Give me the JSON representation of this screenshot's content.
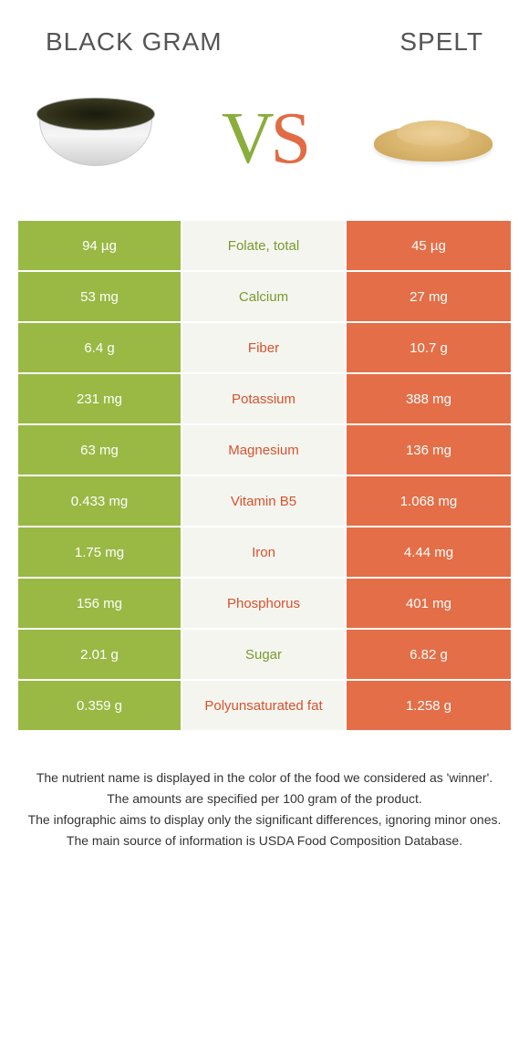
{
  "header": {
    "left_title": "Black gram",
    "right_title": "Spelt"
  },
  "vs": {
    "v": "V",
    "s": "S"
  },
  "colors": {
    "green": "#99b944",
    "orange": "#e46e47",
    "mid_bg": "#f5f5f0",
    "txt_green": "#7a9a2e",
    "txt_orange": "#d8522c"
  },
  "rows": [
    {
      "left": "94 µg",
      "label": "Folate, total",
      "right": "45 µg",
      "winner": "left"
    },
    {
      "left": "53 mg",
      "label": "Calcium",
      "right": "27 mg",
      "winner": "left"
    },
    {
      "left": "6.4 g",
      "label": "Fiber",
      "right": "10.7 g",
      "winner": "right"
    },
    {
      "left": "231 mg",
      "label": "Potassium",
      "right": "388 mg",
      "winner": "right"
    },
    {
      "left": "63 mg",
      "label": "Magnesium",
      "right": "136 mg",
      "winner": "right"
    },
    {
      "left": "0.433 mg",
      "label": "Vitamin B5",
      "right": "1.068 mg",
      "winner": "right"
    },
    {
      "left": "1.75 mg",
      "label": "Iron",
      "right": "4.44 mg",
      "winner": "right"
    },
    {
      "left": "156 mg",
      "label": "Phosphorus",
      "right": "401 mg",
      "winner": "right"
    },
    {
      "left": "2.01 g",
      "label": "Sugar",
      "right": "6.82 g",
      "winner": "left"
    },
    {
      "left": "0.359 g",
      "label": "Polyunsaturated fat",
      "right": "1.258 g",
      "winner": "right"
    }
  ],
  "footer": {
    "line1": "The nutrient name is displayed in the color of the food we considered as 'winner'.",
    "line2": "The amounts are specified per 100 gram of the product.",
    "line3": "The infographic aims to display only the significant differences, ignoring minor ones.",
    "line4": "The main source of information is USDA Food Composition Database."
  }
}
